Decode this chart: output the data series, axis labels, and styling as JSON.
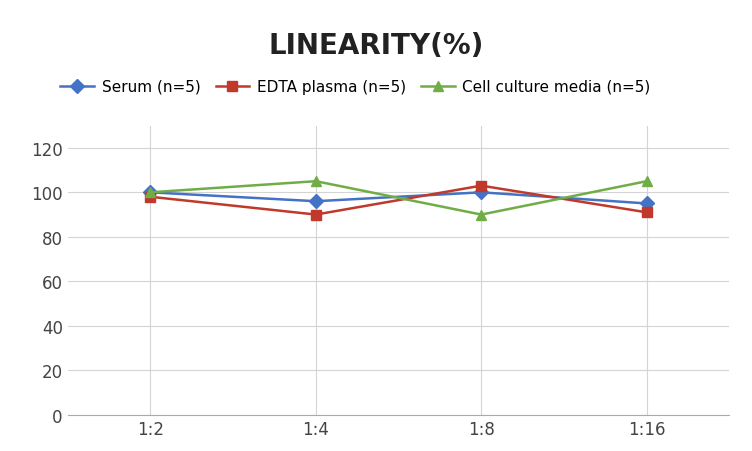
{
  "title": "LINEARITY(%)",
  "x_labels": [
    "1:2",
    "1:4",
    "1:8",
    "1:16"
  ],
  "series": [
    {
      "name": "Serum (n=5)",
      "values": [
        100,
        96,
        100,
        95
      ],
      "color": "#4472C4",
      "marker": "D",
      "marker_color": "#4472C4"
    },
    {
      "name": "EDTA plasma (n=5)",
      "values": [
        98,
        90,
        103,
        91
      ],
      "color": "#C0392B",
      "marker": "s",
      "marker_color": "#C0392B"
    },
    {
      "name": "Cell culture media (n=5)",
      "values": [
        100,
        105,
        90,
        105
      ],
      "color": "#70AD47",
      "marker": "^",
      "marker_color": "#70AD47"
    }
  ],
  "ylim": [
    0,
    130
  ],
  "yticks": [
    0,
    20,
    40,
    60,
    80,
    100,
    120
  ],
  "background_color": "#ffffff",
  "title_fontsize": 20,
  "legend_fontsize": 11,
  "tick_fontsize": 12,
  "grid_color": "#d4d4d4",
  "line_width": 1.8,
  "marker_size": 7
}
